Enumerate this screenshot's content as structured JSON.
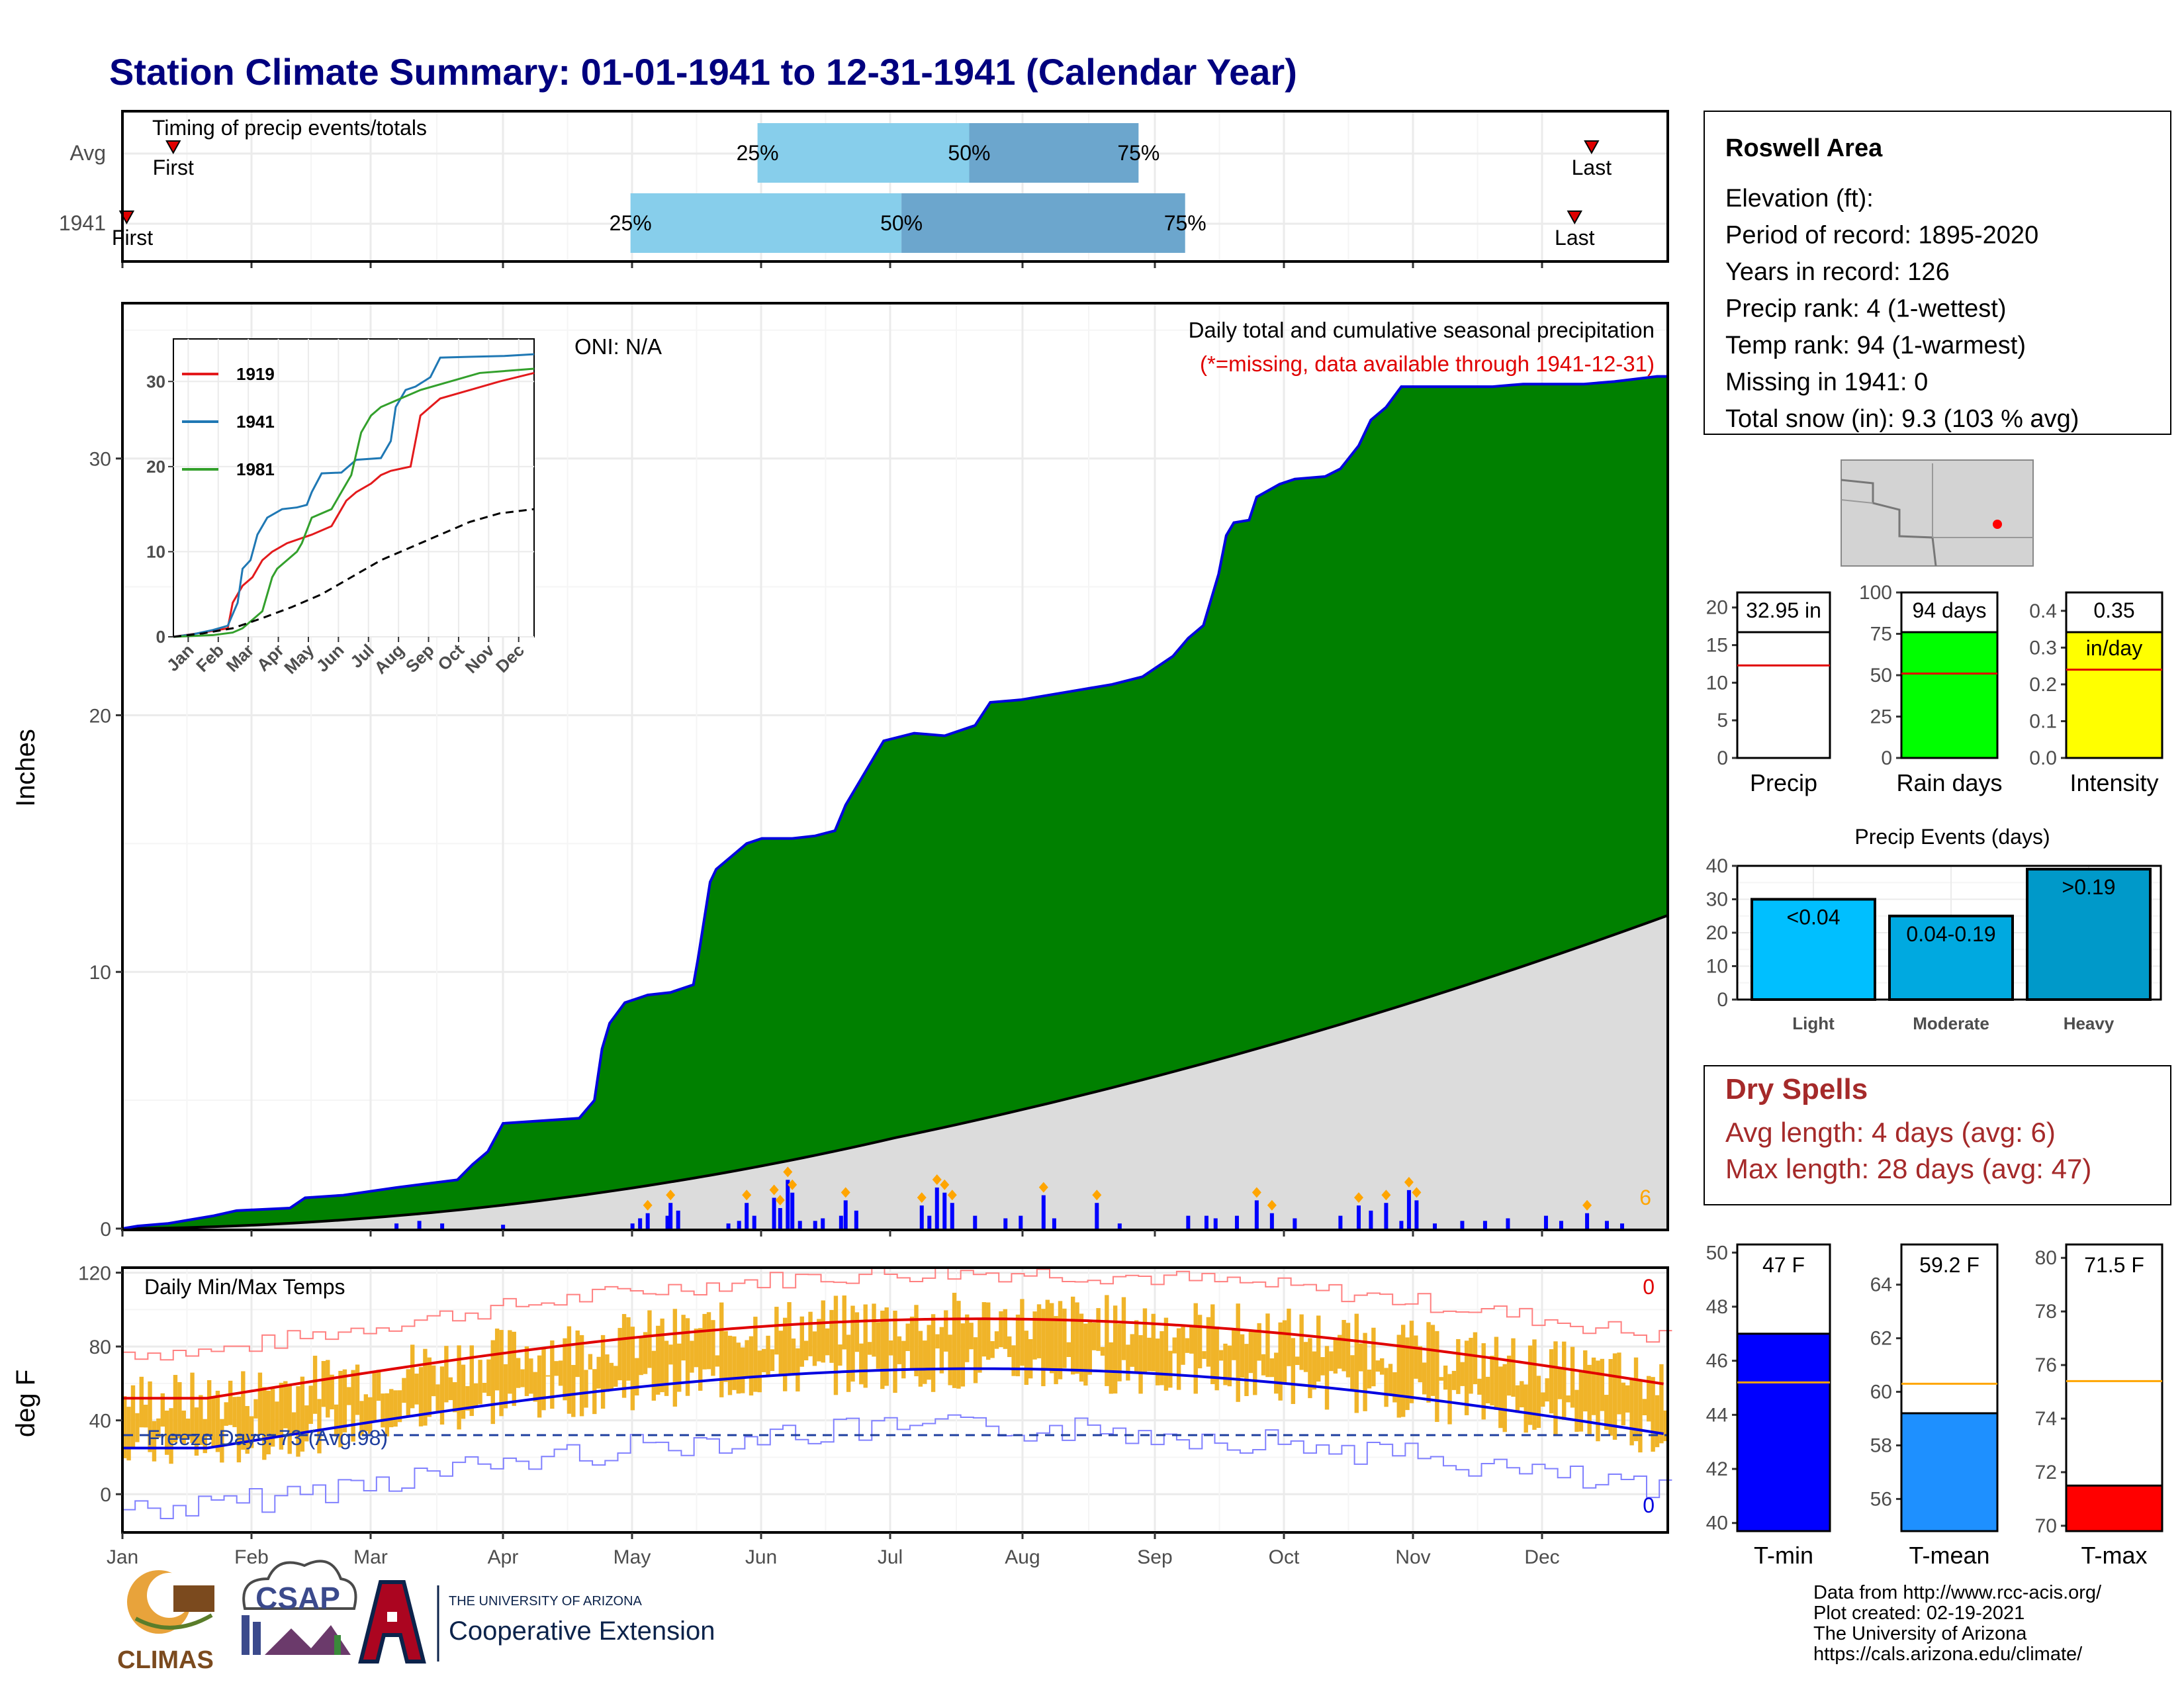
{
  "title": "Station Climate Summary: 01-01-1941 to 12-31-1941 (Calendar Year)",
  "months": [
    "Jan",
    "Feb",
    "Mar",
    "Apr",
    "May",
    "Jun",
    "Jul",
    "Aug",
    "Sep",
    "Oct",
    "Nov",
    "Dec"
  ],
  "timing": {
    "label": "Timing of precip events/totals",
    "rows": [
      {
        "label": "Avg",
        "q25": "25%",
        "q50": "50%",
        "q75": "75%",
        "first": "First",
        "last": "Last",
        "p25_doy": 150,
        "p50_doy": 200,
        "p75_doy": 240,
        "first_doy": 12,
        "last_doy": 347
      },
      {
        "label": "1941",
        "q25": "25%",
        "q50": "50%",
        "q75": "75%",
        "first": "First",
        "last": "Last",
        "p25_doy": 120,
        "p50_doy": 184,
        "p75_doy": 251,
        "first_doy": 1,
        "last_doy": 343
      }
    ]
  },
  "main": {
    "ylabel": "Inches",
    "yticks": [
      "0",
      "10",
      "20",
      "30"
    ],
    "oni": "ONI: N/A",
    "subtitle": "Daily total and cumulative seasonal precipitation",
    "missing_note": "(*=missing, data available through 1941-12-31)",
    "count_label": "6",
    "ymax": 36,
    "cum_1941": [
      [
        0,
        0
      ],
      [
        10,
        0.1
      ],
      [
        30,
        0.2
      ],
      [
        40,
        0.3
      ],
      [
        60,
        0.5
      ],
      [
        75,
        0.7
      ],
      [
        110,
        0.8
      ],
      [
        120,
        1.2
      ],
      [
        145,
        1.3
      ],
      [
        180,
        1.6
      ],
      [
        220,
        1.9
      ],
      [
        230,
        2.5
      ],
      [
        240,
        3.0
      ],
      [
        250,
        4.1
      ],
      [
        300,
        4.3
      ],
      [
        310,
        5.0
      ],
      [
        315,
        7.0
      ],
      [
        320,
        8.0
      ],
      [
        330,
        8.8
      ],
      [
        340,
        9.0
      ],
      [
        345,
        9.1
      ],
      [
        360,
        9.2
      ],
      [
        375,
        9.5
      ],
      [
        378,
        10.5
      ],
      [
        382,
        12.0
      ],
      [
        386,
        13.5
      ],
      [
        390,
        14.0
      ],
      [
        400,
        14.5
      ],
      [
        410,
        15.0
      ],
      [
        420,
        15.2
      ],
      [
        440,
        15.2
      ],
      [
        455,
        15.3
      ],
      [
        468,
        15.5
      ],
      [
        475,
        16.5
      ],
      [
        485,
        17.5
      ],
      [
        500,
        19.0
      ],
      [
        520,
        19.3
      ],
      [
        540,
        19.2
      ],
      [
        560,
        19.6
      ],
      [
        570,
        20.5
      ],
      [
        590,
        20.6
      ],
      [
        610,
        20.8
      ],
      [
        630,
        21.0
      ],
      [
        650,
        21.2
      ],
      [
        670,
        21.5
      ],
      [
        690,
        22.3
      ],
      [
        700,
        23.0
      ],
      [
        710,
        23.5
      ],
      [
        715,
        24.5
      ],
      [
        720,
        25.5
      ],
      [
        725,
        27.0
      ],
      [
        730,
        27.5
      ],
      [
        740,
        27.6
      ],
      [
        745,
        28.5
      ],
      [
        760,
        29.0
      ],
      [
        770,
        29.2
      ],
      [
        790,
        29.3
      ],
      [
        800,
        29.6
      ],
      [
        812,
        30.5
      ],
      [
        820,
        31.5
      ],
      [
        830,
        32.0
      ],
      [
        840,
        32.8
      ],
      [
        850,
        32.8
      ],
      [
        900,
        32.8
      ],
      [
        920,
        32.9
      ],
      [
        960,
        32.9
      ],
      [
        980,
        33.0
      ],
      [
        1008,
        33.2
      ],
      [
        1015,
        33.2
      ]
    ],
    "normal_end": 12.2,
    "daily_bars": [
      [
        180,
        0.2
      ],
      [
        195,
        0.3
      ],
      [
        210,
        0.2
      ],
      [
        250,
        0.15
      ],
      [
        335,
        0.2
      ],
      [
        340,
        0.4
      ],
      [
        345,
        0.6
      ],
      [
        358,
        0.5
      ],
      [
        360,
        1.0
      ],
      [
        365,
        0.7
      ],
      [
        398,
        0.2
      ],
      [
        405,
        0.3
      ],
      [
        410,
        1.0
      ],
      [
        415,
        0.5
      ],
      [
        428,
        1.2
      ],
      [
        432,
        0.8
      ],
      [
        437,
        1.9
      ],
      [
        440,
        1.4
      ],
      [
        445,
        0.3
      ],
      [
        455,
        0.3
      ],
      [
        460,
        0.4
      ],
      [
        472,
        0.5
      ],
      [
        475,
        1.1
      ],
      [
        482,
        0.7
      ],
      [
        525,
        0.9
      ],
      [
        530,
        0.5
      ],
      [
        535,
        1.6
      ],
      [
        540,
        1.4
      ],
      [
        545,
        1.0
      ],
      [
        560,
        0.5
      ],
      [
        580,
        0.4
      ],
      [
        590,
        0.5
      ],
      [
        605,
        1.3
      ],
      [
        612,
        0.4
      ],
      [
        640,
        1.0
      ],
      [
        655,
        0.2
      ],
      [
        700,
        0.5
      ],
      [
        712,
        0.5
      ],
      [
        718,
        0.4
      ],
      [
        732,
        0.5
      ],
      [
        745,
        1.1
      ],
      [
        755,
        0.6
      ],
      [
        770,
        0.4
      ],
      [
        800,
        0.5
      ],
      [
        812,
        0.9
      ],
      [
        820,
        0.7
      ],
      [
        830,
        1.0
      ],
      [
        840,
        0.3
      ],
      [
        845,
        1.5
      ],
      [
        850,
        1.1
      ],
      [
        862,
        0.2
      ],
      [
        880,
        0.3
      ],
      [
        895,
        0.3
      ],
      [
        910,
        0.4
      ],
      [
        935,
        0.5
      ],
      [
        945,
        0.3
      ],
      [
        962,
        0.6
      ],
      [
        975,
        0.3
      ],
      [
        985,
        0.2
      ]
    ]
  },
  "inset": {
    "yticks": [
      "0",
      "10",
      "20",
      "30"
    ],
    "xticks": [
      "Jan",
      "Feb",
      "Mar",
      "Apr",
      "May",
      "Jun",
      "Jul",
      "Aug",
      "Sep",
      "Oct",
      "Nov",
      "Dec"
    ],
    "ymax": 35,
    "series": [
      {
        "name": "1919",
        "color": "#E31A1C",
        "points": [
          [
            0,
            0
          ],
          [
            30,
            0.5
          ],
          [
            55,
            1
          ],
          [
            60,
            4
          ],
          [
            70,
            6
          ],
          [
            80,
            7
          ],
          [
            90,
            9
          ],
          [
            100,
            10
          ],
          [
            115,
            11
          ],
          [
            140,
            12
          ],
          [
            160,
            13
          ],
          [
            175,
            16
          ],
          [
            185,
            17
          ],
          [
            200,
            18
          ],
          [
            210,
            19
          ],
          [
            220,
            19.5
          ],
          [
            240,
            20
          ],
          [
            250,
            26
          ],
          [
            270,
            28
          ],
          [
            300,
            29
          ],
          [
            330,
            30
          ],
          [
            365,
            31
          ]
        ]
      },
      {
        "name": "1941",
        "color": "#1F78B4",
        "points": [
          [
            0,
            0
          ],
          [
            20,
            0.3
          ],
          [
            40,
            0.8
          ],
          [
            55,
            1.3
          ],
          [
            65,
            4
          ],
          [
            70,
            8
          ],
          [
            78,
            9
          ],
          [
            85,
            12
          ],
          [
            95,
            14
          ],
          [
            110,
            15
          ],
          [
            125,
            15.2
          ],
          [
            135,
            15.5
          ],
          [
            140,
            17
          ],
          [
            150,
            19.2
          ],
          [
            170,
            19.3
          ],
          [
            185,
            20.8
          ],
          [
            210,
            21
          ],
          [
            220,
            23
          ],
          [
            225,
            27
          ],
          [
            235,
            29
          ],
          [
            245,
            29.4
          ],
          [
            260,
            30.5
          ],
          [
            270,
            32.8
          ],
          [
            300,
            32.9
          ],
          [
            335,
            33
          ],
          [
            365,
            33.2
          ]
        ]
      },
      {
        "name": "1981",
        "color": "#33A02C",
        "points": [
          [
            0,
            0
          ],
          [
            40,
            0.2
          ],
          [
            60,
            0.5
          ],
          [
            70,
            1
          ],
          [
            80,
            2
          ],
          [
            90,
            3
          ],
          [
            95,
            5
          ],
          [
            100,
            7
          ],
          [
            105,
            8
          ],
          [
            115,
            9
          ],
          [
            125,
            10
          ],
          [
            130,
            11
          ],
          [
            140,
            14
          ],
          [
            160,
            15
          ],
          [
            170,
            17
          ],
          [
            180,
            19
          ],
          [
            190,
            24
          ],
          [
            200,
            26
          ],
          [
            210,
            27
          ],
          [
            230,
            28
          ],
          [
            250,
            29
          ],
          [
            280,
            30
          ],
          [
            310,
            31
          ],
          [
            365,
            31.5
          ]
        ]
      },
      {
        "name": "",
        "color": "#000000",
        "dashed": true,
        "points": [
          [
            0,
            0
          ],
          [
            30,
            0.4
          ],
          [
            60,
            1
          ],
          [
            90,
            2.2
          ],
          [
            120,
            3.5
          ],
          [
            150,
            5
          ],
          [
            180,
            7
          ],
          [
            210,
            9
          ],
          [
            240,
            10.5
          ],
          [
            270,
            12
          ],
          [
            300,
            13.5
          ],
          [
            330,
            14.5
          ],
          [
            365,
            15
          ]
        ]
      }
    ]
  },
  "info": {
    "station": "Roswell Area",
    "lines": [
      "Elevation (ft):",
      "Period of record: 1895-2020",
      "Years in record: 126",
      "Precip rank: 4 (1-wettest)",
      "Temp rank: 94 (1-warmest)",
      "Missing in 1941: 0",
      "Total snow (in): 9.3 (103 % avg)"
    ]
  },
  "mini_bars": [
    {
      "label": "Precip",
      "value_label": "32.95 in",
      "ticks": [
        "0",
        "5",
        "10",
        "15",
        "20"
      ],
      "ymax": 22,
      "value": 32.95,
      "avg": 12.3,
      "color": "#ffffff"
    },
    {
      "label": "Rain days",
      "value_label": "94 days",
      "ticks": [
        "0",
        "25",
        "50",
        "75",
        "100"
      ],
      "ymax": 100,
      "value": 94,
      "avg": 51,
      "color": "#00FF00"
    },
    {
      "label": "Intensity",
      "value_label": "0.35",
      "value_unit": "in/day",
      "ticks": [
        "0.0",
        "0.1",
        "0.2",
        "0.3",
        "0.4"
      ],
      "ymax": 0.45,
      "value": 0.35,
      "avg": 0.24,
      "color": "#FFFF00"
    }
  ],
  "events": {
    "title": "Precip Events (days)",
    "ticks": [
      "0",
      "10",
      "20",
      "30",
      "40"
    ],
    "ymax": 40,
    "bars": [
      {
        "category": "Light",
        "value": 30,
        "label": "<0.04",
        "color": "#00BFFF"
      },
      {
        "category": "Moderate",
        "value": 25,
        "label": "0.04-0.19",
        "color": "#00A9E0"
      },
      {
        "category": "Heavy",
        "value": 39,
        "label": ">0.19",
        "color": "#0099C9"
      }
    ]
  },
  "dry_spells": {
    "title": "Dry Spells",
    "avg": "Avg length: 4 days (avg: 6)",
    "max": "Max length: 28 days (avg: 47)"
  },
  "temp": {
    "title": "Daily Min/Max Temps",
    "ylabel": "deg F",
    "yticks": [
      "0",
      "40",
      "80",
      "120"
    ],
    "count_hot": "0",
    "count_cold": "0",
    "freeze": "Freeze Days: 73 (Avg:98)"
  },
  "temp_bars": [
    {
      "label": "T-min",
      "value_label": "47 F",
      "ticks": [
        "40",
        "42",
        "44",
        "46",
        "48",
        "50"
      ],
      "ymin": 39.7,
      "ymax": 50.3,
      "value": 47,
      "avg": 45.2,
      "color": "#0000FF"
    },
    {
      "label": "T-mean",
      "value_label": "59.2 F",
      "ticks": [
        "56",
        "58",
        "60",
        "62",
        "64"
      ],
      "ymin": 54.8,
      "ymax": 65.5,
      "value": 59.2,
      "avg": 60.3,
      "color": "#1E90FF"
    },
    {
      "label": "T-max",
      "value_label": "71.5 F",
      "ticks": [
        "70",
        "72",
        "74",
        "76",
        "78",
        "80"
      ],
      "ymin": 69.8,
      "ymax": 80.5,
      "value": 71.5,
      "avg": 75.4,
      "color": "#FF0000"
    }
  ],
  "footer": {
    "lines": [
      "Data from http://www.rcc-acis.org/",
      "Plot created: 02-19-2021",
      "The University of Arizona",
      "https://cals.arizona.edu/climate/"
    ],
    "logo_climas": "CLIMAS",
    "logo_csap": "CSAP",
    "ua_small": "THE UNIVERSITY OF ARIZONA",
    "ua_big": "Cooperative Extension"
  }
}
